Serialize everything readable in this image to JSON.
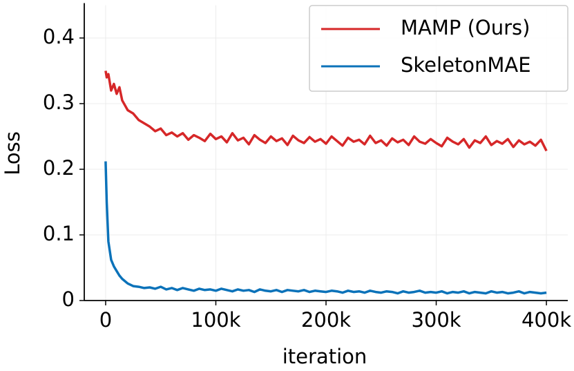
{
  "chart_data": {
    "type": "line",
    "xlabel": "iteration",
    "ylabel": "Loss",
    "x": [
      0,
      1000,
      2500,
      5000,
      7500,
      10000,
      12500,
      15000,
      20000,
      25000,
      30000,
      35000,
      40000,
      45000,
      50000,
      55000,
      60000,
      65000,
      70000,
      75000,
      80000,
      85000,
      90000,
      95000,
      100000,
      105000,
      110000,
      115000,
      120000,
      125000,
      130000,
      135000,
      140000,
      145000,
      150000,
      155000,
      160000,
      165000,
      170000,
      175000,
      180000,
      185000,
      190000,
      195000,
      200000,
      205000,
      210000,
      215000,
      220000,
      225000,
      230000,
      235000,
      240000,
      245000,
      250000,
      255000,
      260000,
      265000,
      270000,
      275000,
      280000,
      285000,
      290000,
      295000,
      300000,
      305000,
      310000,
      315000,
      320000,
      325000,
      330000,
      335000,
      340000,
      345000,
      350000,
      355000,
      360000,
      365000,
      370000,
      375000,
      380000,
      385000,
      390000,
      395000,
      400000
    ],
    "series": [
      {
        "name": "MAMP (Ours)",
        "color": "#d62728",
        "values": [
          0.35,
          0.34,
          0.345,
          0.32,
          0.33,
          0.315,
          0.325,
          0.305,
          0.29,
          0.285,
          0.275,
          0.27,
          0.265,
          0.258,
          0.262,
          0.252,
          0.256,
          0.25,
          0.255,
          0.245,
          0.252,
          0.248,
          0.243,
          0.254,
          0.246,
          0.25,
          0.241,
          0.255,
          0.244,
          0.248,
          0.238,
          0.252,
          0.245,
          0.24,
          0.25,
          0.243,
          0.247,
          0.237,
          0.251,
          0.244,
          0.24,
          0.249,
          0.242,
          0.246,
          0.239,
          0.25,
          0.243,
          0.236,
          0.248,
          0.242,
          0.245,
          0.238,
          0.251,
          0.24,
          0.244,
          0.236,
          0.247,
          0.241,
          0.245,
          0.237,
          0.25,
          0.242,
          0.239,
          0.246,
          0.24,
          0.235,
          0.248,
          0.242,
          0.238,
          0.246,
          0.233,
          0.244,
          0.24,
          0.25,
          0.237,
          0.243,
          0.239,
          0.246,
          0.234,
          0.244,
          0.238,
          0.242,
          0.236,
          0.245,
          0.228
        ]
      },
      {
        "name": "SkeletonMAE",
        "color": "#0b72b9",
        "values": [
          0.212,
          0.15,
          0.09,
          0.062,
          0.052,
          0.045,
          0.038,
          0.033,
          0.026,
          0.022,
          0.021,
          0.019,
          0.02,
          0.018,
          0.021,
          0.017,
          0.019,
          0.016,
          0.019,
          0.017,
          0.015,
          0.018,
          0.016,
          0.017,
          0.015,
          0.018,
          0.016,
          0.014,
          0.017,
          0.015,
          0.016,
          0.013,
          0.017,
          0.015,
          0.014,
          0.016,
          0.013,
          0.016,
          0.015,
          0.014,
          0.016,
          0.013,
          0.015,
          0.014,
          0.013,
          0.015,
          0.014,
          0.012,
          0.015,
          0.013,
          0.014,
          0.012,
          0.015,
          0.013,
          0.012,
          0.014,
          0.013,
          0.011,
          0.014,
          0.012,
          0.013,
          0.015,
          0.012,
          0.013,
          0.012,
          0.014,
          0.011,
          0.013,
          0.012,
          0.014,
          0.011,
          0.013,
          0.012,
          0.011,
          0.014,
          0.012,
          0.013,
          0.011,
          0.012,
          0.014,
          0.011,
          0.013,
          0.012,
          0.011,
          0.012
        ]
      }
    ],
    "xlim": [
      -19400,
      419400
    ],
    "ylim": [
      0,
      0.45
    ],
    "xticks": [
      0,
      {
        "value": 100000,
        "label": "100k"
      },
      {
        "value": 200000,
        "label": "200k"
      },
      {
        "value": 300000,
        "label": "300k"
      },
      {
        "value": 400000,
        "label": "400k"
      }
    ],
    "yticks": [
      0,
      0.1,
      0.2,
      0.3,
      0.4
    ],
    "grid": true,
    "legend": "upper right"
  }
}
